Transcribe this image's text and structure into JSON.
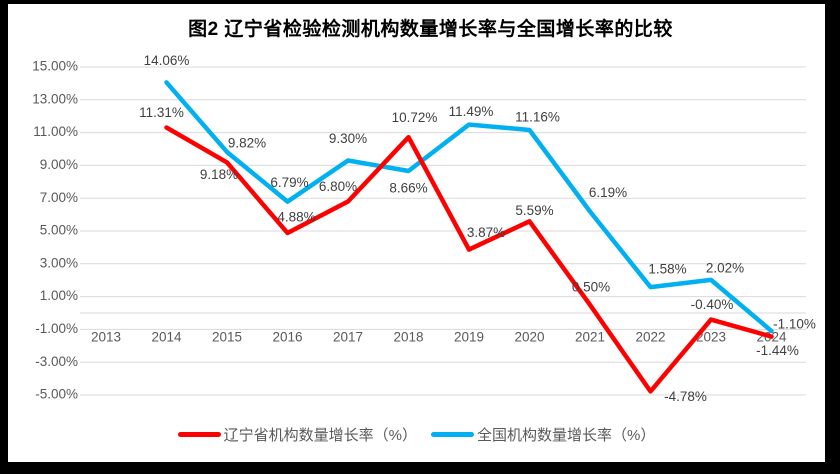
{
  "title": "图2 辽宁省检验检测机构数量增长率与全国增长率的比较",
  "chart_data": {
    "type": "line",
    "categories": [
      "2013",
      "2014",
      "2015",
      "2016",
      "2017",
      "2018",
      "2019",
      "2020",
      "2021",
      "2022",
      "2023",
      "2024"
    ],
    "series": [
      {
        "name": "辽宁省机构数量增长率（%）",
        "color": "#FF0000",
        "z": 2,
        "values": [
          null,
          11.31,
          9.18,
          4.88,
          6.8,
          10.72,
          3.87,
          5.59,
          0.5,
          -4.78,
          -0.4,
          -1.44
        ],
        "label_offsets": [
          null,
          [
            -5,
            -14
          ],
          [
            -8,
            13
          ],
          [
            9,
            -15
          ],
          [
            -10,
            -14
          ],
          [
            6,
            -19
          ],
          [
            17,
            -16
          ],
          [
            5,
            -10
          ],
          [
            1,
            -17
          ],
          [
            35,
            6
          ],
          [
            1,
            -14
          ],
          [
            6,
            15
          ]
        ]
      },
      {
        "name": "全国机构数量增长率（%）",
        "color": "#00B0F0",
        "z": 1,
        "values": [
          null,
          14.06,
          9.82,
          6.79,
          9.3,
          8.66,
          11.49,
          11.16,
          6.19,
          1.58,
          2.02,
          -1.1
        ],
        "label_offsets": [
          null,
          [
            0,
            -21
          ],
          [
            20,
            -8
          ],
          [
            2,
            -18
          ],
          [
            0,
            -21
          ],
          [
            0,
            18
          ],
          [
            2,
            -12
          ],
          [
            8,
            -12
          ],
          [
            18,
            -18
          ],
          [
            17,
            -17
          ],
          [
            14,
            -11
          ],
          [
            23,
            -6
          ]
        ]
      }
    ],
    "ylim": [
      -5,
      15
    ],
    "yticks": [
      {
        "v": 15,
        "label": "15.00%"
      },
      {
        "v": 13,
        "label": "13.00%"
      },
      {
        "v": 11,
        "label": "11.00%"
      },
      {
        "v": 9,
        "label": "9.00%"
      },
      {
        "v": 7,
        "label": "7.00%"
      },
      {
        "v": 5,
        "label": "5.00%"
      },
      {
        "v": 3,
        "label": "3.00%"
      },
      {
        "v": 1,
        "label": "1.00%"
      },
      {
        "v": -1,
        "label": "-1.00%"
      },
      {
        "v": -3,
        "label": "-3.00%"
      },
      {
        "v": -5,
        "label": "-5.00%"
      }
    ],
    "x_axis_at": 0,
    "grid": true,
    "legend_position": "bottom",
    "colors": {
      "grid": "#D9D9D9",
      "axis_label": "#595959",
      "data_label": "#404040",
      "title": "#000000"
    }
  }
}
